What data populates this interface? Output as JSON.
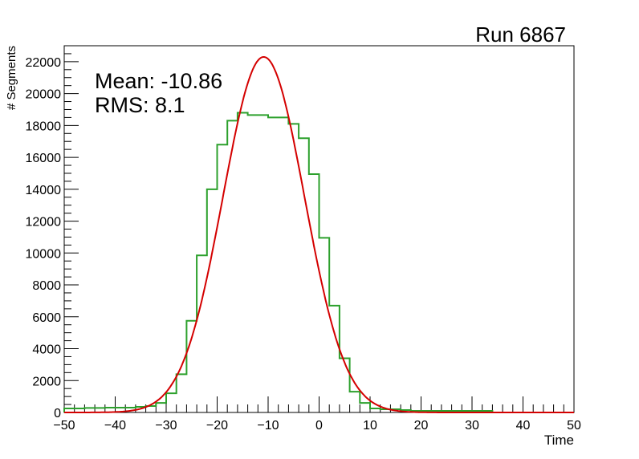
{
  "chart_data": {
    "type": "bar",
    "title": "Run 6867",
    "xlabel": "Time",
    "ylabel": "# Segments",
    "xlim": [
      -50,
      50
    ],
    "ylim": [
      0,
      23000
    ],
    "xticks": [
      -50,
      -40,
      -30,
      -20,
      -10,
      0,
      10,
      20,
      30,
      40,
      50
    ],
    "yticks": [
      0,
      2000,
      4000,
      6000,
      8000,
      10000,
      12000,
      14000,
      16000,
      18000,
      20000,
      22000
    ],
    "stats": [
      "Mean: -10.86",
      "RMS:  8.1"
    ],
    "grid": false,
    "series": [
      {
        "name": "histogram",
        "color": "#2ca02c",
        "bin_width": 2,
        "bin_low_edges": [
          -50,
          -48,
          -46,
          -44,
          -42,
          -40,
          -38,
          -36,
          -34,
          -32,
          -30,
          -28,
          -26,
          -24,
          -22,
          -20,
          -18,
          -16,
          -14,
          -12,
          -10,
          -8,
          -6,
          -4,
          -2,
          0,
          2,
          4,
          6,
          8,
          10,
          12,
          14,
          16,
          18,
          20,
          22,
          24,
          26,
          28,
          30,
          32,
          34,
          36,
          38,
          40,
          42,
          44,
          46,
          48
        ],
        "values": [
          250,
          250,
          280,
          280,
          300,
          300,
          300,
          350,
          400,
          600,
          1200,
          2400,
          5750,
          9850,
          14000,
          16800,
          18300,
          18800,
          18650,
          18650,
          18500,
          18500,
          18100,
          17200,
          14950,
          10950,
          6700,
          3400,
          1300,
          600,
          250,
          200,
          200,
          150,
          100,
          100,
          100,
          100,
          100,
          100,
          100,
          100,
          0,
          0,
          0,
          0,
          0,
          0,
          0,
          0
        ]
      },
      {
        "name": "gaussian fit",
        "color": "#d40000",
        "function": "gaussian",
        "amplitude": 22300,
        "mean": -10.86,
        "sigma": 8.0
      }
    ]
  }
}
